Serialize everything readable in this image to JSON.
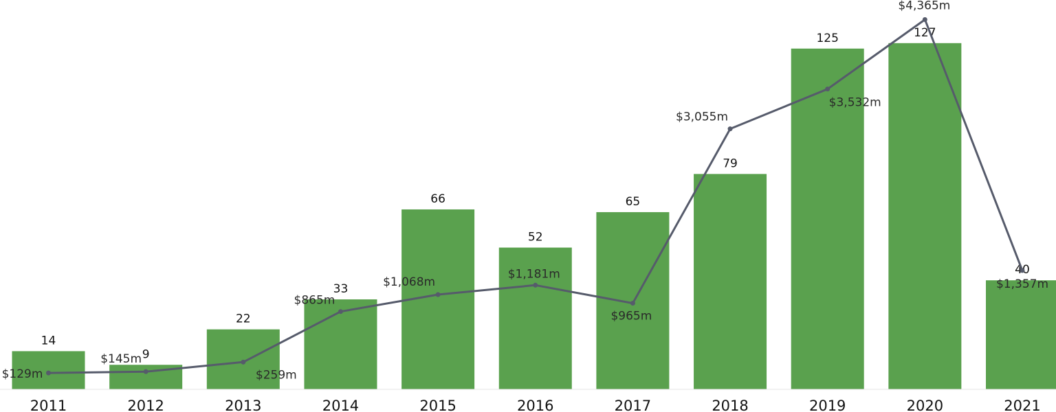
{
  "chart_data": {
    "type": "bar",
    "categories": [
      "2011",
      "2012",
      "2013",
      "2014",
      "2015",
      "2016",
      "2017",
      "2018",
      "2019",
      "2020",
      "2021"
    ],
    "series": [
      {
        "values": [
          14,
          9,
          22,
          33,
          66,
          52,
          65,
          79,
          125,
          127,
          40
        ],
        "type": "bar"
      },
      {
        "values": [
          129,
          145,
          259,
          865,
          1068,
          1181,
          965,
          3055,
          3532,
          4365,
          1357
        ],
        "type": "line"
      }
    ],
    "bar_labels": [
      "14",
      "9",
      "22",
      "33",
      "66",
      "52",
      "65",
      "79",
      "125",
      "127",
      "40"
    ],
    "line_labels": [
      "$129m",
      "$145m",
      "$259m",
      "$865m",
      "$1,068m",
      "$1,181m",
      "$965m",
      "$3,055m",
      "$3,532m",
      "$4,365m",
      "$1,357m"
    ],
    "grid": false,
    "legend": "none",
    "colors": {
      "bar": "#5aa14e",
      "line": "#565b6b"
    }
  }
}
